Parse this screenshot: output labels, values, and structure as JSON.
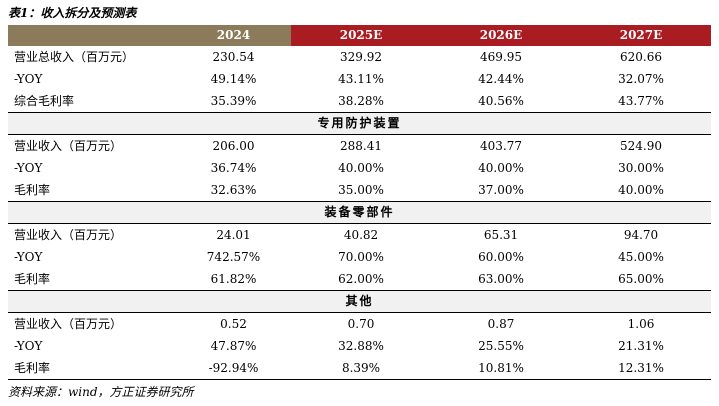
{
  "caption": "表1：收入拆分及预测表",
  "header": [
    "",
    "2024",
    "2025E",
    "2026E",
    "2027E"
  ],
  "top_rows": [
    [
      "营业总收入（百万元）",
      "230.54",
      "329.92",
      "469.95",
      "620.66"
    ],
    [
      "-YOY",
      "49.14%",
      "43.11%",
      "42.44%",
      "32.07%"
    ],
    [
      "综合毛利率",
      "35.39%",
      "38.28%",
      "40.56%",
      "43.77%"
    ]
  ],
  "sections": [
    {
      "title": "专用防护装置",
      "rows": [
        [
          "营业收入（百万元）",
          "206.00",
          "288.41",
          "403.77",
          "524.90"
        ],
        [
          "-YOY",
          "36.74%",
          "40.00%",
          "40.00%",
          "30.00%"
        ],
        [
          "毛利率",
          "32.63%",
          "35.00%",
          "37.00%",
          "40.00%"
        ]
      ]
    },
    {
      "title": "装备零部件",
      "rows": [
        [
          "营业收入（百万元）",
          "24.01",
          "40.82",
          "65.31",
          "94.70"
        ],
        [
          "-YOY",
          "742.57%",
          "70.00%",
          "60.00%",
          "45.00%"
        ],
        [
          "毛利率",
          "61.82%",
          "62.00%",
          "63.00%",
          "65.00%"
        ]
      ]
    },
    {
      "title": "其他",
      "rows": [
        [
          "营业收入（百万元）",
          "0.52",
          "0.70",
          "0.87",
          "1.06"
        ],
        [
          "-YOY",
          "47.87%",
          "32.88%",
          "25.55%",
          "21.31%"
        ],
        [
          "毛利率",
          "-92.94%",
          "8.39%",
          "10.81%",
          "12.31%"
        ]
      ]
    }
  ],
  "source": "资料来源：wind，方正证券研究所"
}
